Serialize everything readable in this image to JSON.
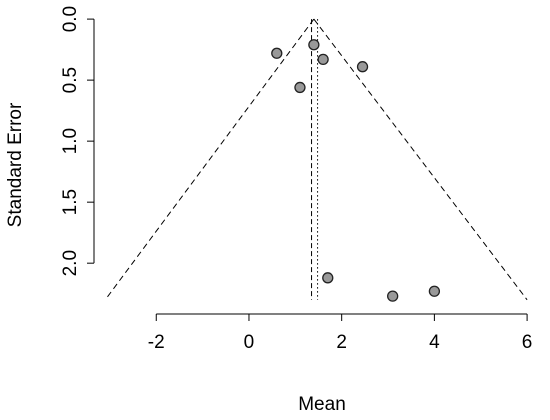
{
  "chart_data": {
    "type": "scatter",
    "title": "",
    "xlabel": "Mean",
    "ylabel": "Standard Error",
    "xlim": [
      -3.3,
      6.3
    ],
    "ylim": [
      2.4,
      -0.05
    ],
    "y_reversed": true,
    "x_ticks": [
      -2,
      0,
      2,
      4,
      6
    ],
    "x_tick_labels": [
      "-2",
      "0",
      "2",
      "4",
      "6"
    ],
    "y_ticks": [
      0.0,
      0.5,
      1.0,
      1.5,
      2.0
    ],
    "y_tick_labels": [
      "0.0",
      "0.5",
      "1.0",
      "1.5",
      "2.0"
    ],
    "grid": false,
    "points": [
      {
        "x": 0.6,
        "y": 0.28
      },
      {
        "x": 1.4,
        "y": 0.21
      },
      {
        "x": 1.6,
        "y": 0.33
      },
      {
        "x": 2.45,
        "y": 0.39
      },
      {
        "x": 1.1,
        "y": 0.56
      },
      {
        "x": 1.7,
        "y": 2.12
      },
      {
        "x": 3.1,
        "y": 2.27
      },
      {
        "x": 4.0,
        "y": 2.23
      }
    ],
    "funnel": {
      "apex_x": 1.4,
      "apex_y": 0.0,
      "base_y": 2.3,
      "base_left_x": -3.1,
      "base_right_x": 6.0
    },
    "mean_lines": [
      {
        "x": 1.35,
        "style": "dashed"
      },
      {
        "x": 1.48,
        "style": "dotted"
      }
    ],
    "point_color": "#999999",
    "point_stroke": "#222222"
  }
}
